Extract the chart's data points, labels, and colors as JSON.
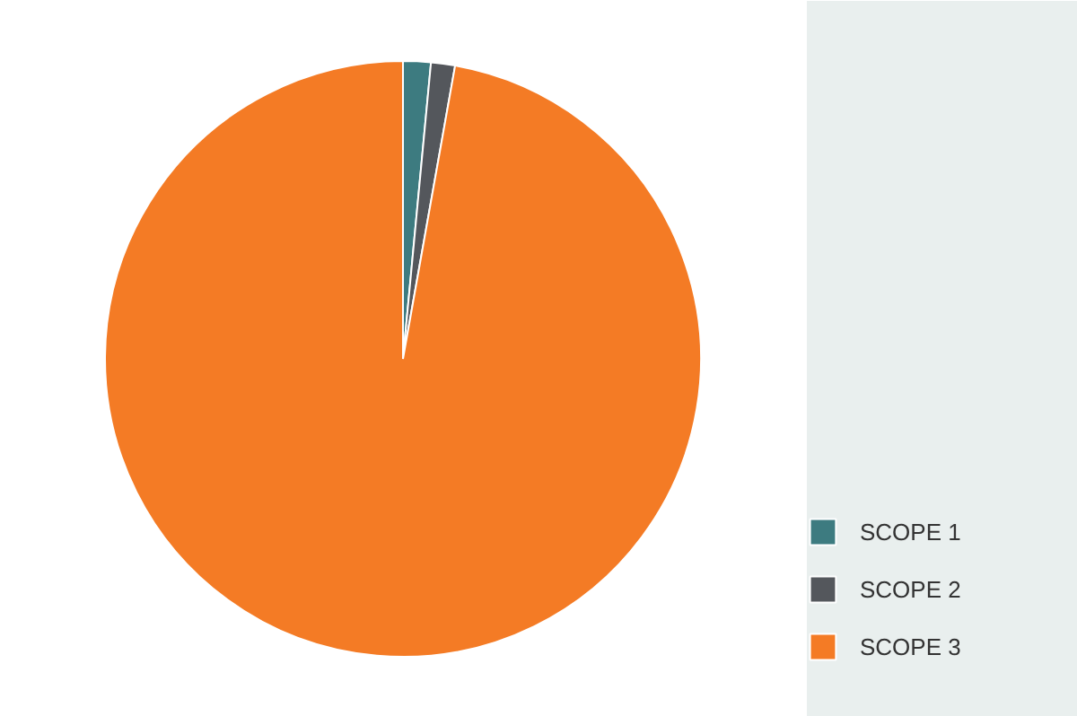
{
  "chart_data": {
    "type": "pie",
    "categories": [
      "SCOPE 1",
      "SCOPE 2",
      "SCOPE 3"
    ],
    "values": [
      1.5,
      1.3,
      97.2
    ],
    "colors": [
      "#3d7b80",
      "#54575c",
      "#f47b25"
    ],
    "legend": "right"
  }
}
